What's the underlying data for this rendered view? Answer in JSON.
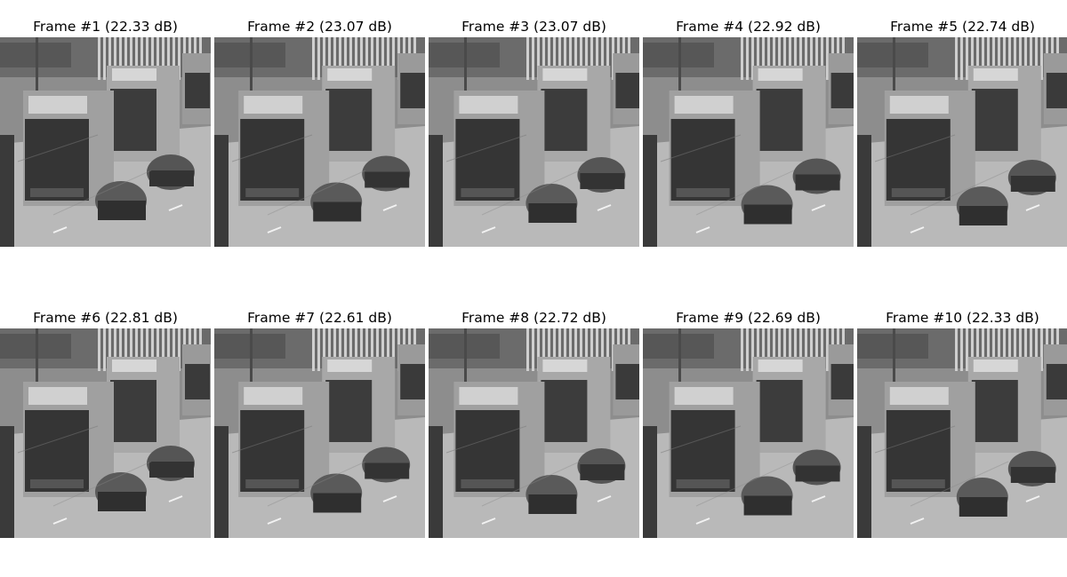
{
  "frames": [
    {
      "title": "Frame #1 (22.33 dB)",
      "psnr_db": 22.33,
      "index": 1
    },
    {
      "title": "Frame #2 (23.07 dB)",
      "psnr_db": 23.07,
      "index": 2
    },
    {
      "title": "Frame #3 (23.07 dB)",
      "psnr_db": 23.07,
      "index": 3
    },
    {
      "title": "Frame #4 (22.92 dB)",
      "psnr_db": 22.92,
      "index": 4
    },
    {
      "title": "Frame #5 (22.74 dB)",
      "psnr_db": 22.74,
      "index": 5
    },
    {
      "title": "Frame #6 (22.81 dB)",
      "psnr_db": 22.81,
      "index": 6
    },
    {
      "title": "Frame #7 (22.61 dB)",
      "psnr_db": 22.61,
      "index": 7
    },
    {
      "title": "Frame #8 (22.72 dB)",
      "psnr_db": 22.72,
      "index": 8
    },
    {
      "title": "Frame #9 (22.69 dB)",
      "psnr_db": 22.69,
      "index": 9
    },
    {
      "title": "Frame #10 (22.33 dB)",
      "psnr_db": 22.33,
      "index": 10
    }
  ]
}
